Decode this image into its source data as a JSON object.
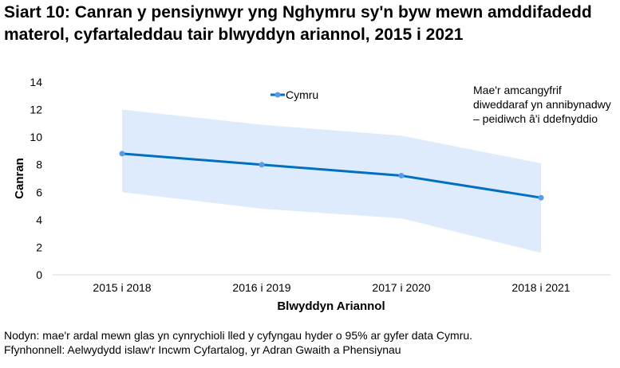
{
  "chart_data": {
    "type": "line",
    "title": "Siart 10: Canran y pensiynwyr yng Nghymru sy'n byw mewn amddifadedd materol, cyfartaleddau tair blwyddyn ariannol, 2015 i 2021",
    "xlabel": "Blwyddyn Ariannol",
    "ylabel": "Canran",
    "categories": [
      "2015 i 2018",
      "2016 i 2019",
      "2017 i 2020",
      "2018 i 2021"
    ],
    "ylim": [
      0,
      14
    ],
    "yticks": [
      0,
      2,
      4,
      6,
      8,
      10,
      12,
      14
    ],
    "series": [
      {
        "name": "Cymru",
        "values": [
          8.8,
          8.0,
          7.2,
          5.6
        ],
        "color": "#0070C0"
      }
    ],
    "confidence_band": {
      "upper": [
        12.0,
        10.9,
        10.1,
        8.1
      ],
      "lower": [
        6.0,
        4.8,
        4.1,
        1.6
      ],
      "color": "#DDEBFC"
    },
    "legend_position": "top-center",
    "annotation": "Mae'r amcangyfrif diweddaraf yn annibynadwy – peidiwch â'i ddefnyddio"
  },
  "footer": {
    "note": "Nodyn: mae'r ardal mewn glas yn cynrychioli lled y cyfyngau hyder o 95% ar gyfer data Cymru.",
    "source": "Ffynhonnell: Aelwydydd islaw'r Incwm Cyfartalog, yr Adran Gwaith a Phensiynau"
  }
}
